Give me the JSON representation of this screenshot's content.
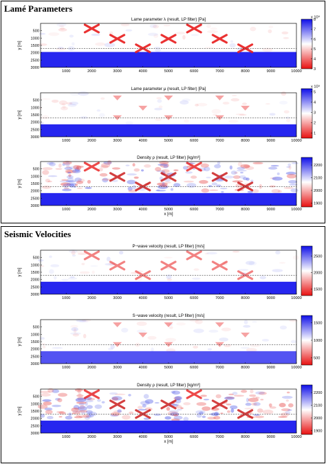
{
  "sections": [
    {
      "title": "Lamé Parameters"
    },
    {
      "title": "Seismic Velocities"
    }
  ],
  "colors": {
    "accent_blue": "#1a1aee",
    "accent_red": "#e81c1c",
    "frame": "#000000"
  },
  "chart_data": [
    {
      "type": "heatmap",
      "title": "Lame parameter λ (result, LP filter) [Pa]",
      "xlabel": "",
      "ylabel": "y [m]",
      "xlim": [
        0,
        10000
      ],
      "ylim": [
        3000,
        0
      ],
      "xticks": [
        "1000",
        "2000",
        "3000",
        "4000",
        "5000",
        "6000",
        "7000",
        "8000",
        "9000",
        "10000"
      ],
      "yticks": [
        "500",
        "1000",
        "1500",
        "2000",
        "2500",
        "3000"
      ],
      "colorbar": {
        "ticks": [
          "8",
          "7",
          "6",
          "5",
          "4",
          "3"
        ],
        "exponent": "x 10⁹",
        "min": 3,
        "max": 8
      },
      "interface_depth": 1700,
      "bottom_layer_top": 1950,
      "anomalies": [
        {
          "x": 2000,
          "y": 350,
          "shape": "x"
        },
        {
          "x": 3000,
          "y": 1050,
          "shape": "x"
        },
        {
          "x": 4000,
          "y": 1700,
          "shape": "x"
        },
        {
          "x": 5000,
          "y": 1050,
          "shape": "x"
        },
        {
          "x": 6000,
          "y": 350,
          "shape": "x"
        },
        {
          "x": 7000,
          "y": 1050,
          "shape": "x"
        },
        {
          "x": 8000,
          "y": 1700,
          "shape": "x"
        }
      ]
    },
    {
      "type": "heatmap",
      "title": "Lame parameter μ (result, LP filter) [Pa]",
      "xlabel": "",
      "ylabel": "y [m]",
      "xlim": [
        0,
        10000
      ],
      "ylim": [
        3000,
        0
      ],
      "xticks": [
        "1000",
        "2000",
        "3000",
        "4000",
        "5000",
        "6000",
        "7000",
        "8000",
        "9000",
        "10000"
      ],
      "yticks": [
        "500",
        "1000",
        "1500",
        "2000",
        "2500",
        "3000"
      ],
      "colorbar": {
        "ticks": [
          "5",
          "4",
          "3",
          "2",
          "1"
        ],
        "exponent": "x 10⁹",
        "min": 0.5,
        "max": 5.3
      },
      "interface_depth": 1700,
      "bottom_layer_top": 2150,
      "anomalies": [
        {
          "x": 3000,
          "y": 350,
          "shape": "tri"
        },
        {
          "x": 4000,
          "y": 1050,
          "shape": "tri"
        },
        {
          "x": 5000,
          "y": 350,
          "shape": "tri"
        },
        {
          "x": 7000,
          "y": 350,
          "shape": "tri"
        },
        {
          "x": 8000,
          "y": 1050,
          "shape": "tri"
        },
        {
          "x": 3000,
          "y": 1700,
          "shape": "tri"
        },
        {
          "x": 5000,
          "y": 1700,
          "shape": "tri"
        },
        {
          "x": 7000,
          "y": 1700,
          "shape": "tri"
        }
      ]
    },
    {
      "type": "heatmap",
      "title": "Density ρ (result, LP filter) [kg/m³]",
      "xlabel": "x [m]",
      "ylabel": "y [m]",
      "xlim": [
        0,
        10000
      ],
      "ylim": [
        3000,
        0
      ],
      "xticks": [
        "1000",
        "2000",
        "3000",
        "4000",
        "5000",
        "6000",
        "7000",
        "8000",
        "9000",
        "10000"
      ],
      "yticks": [
        "500",
        "1000",
        "1500",
        "2000",
        "2500",
        "3000"
      ],
      "colorbar": {
        "ticks": [
          "2200",
          "2100",
          "2000",
          "1900"
        ],
        "exponent": "",
        "min": 1870,
        "max": 2260
      },
      "interface_depth": 1700,
      "bottom_layer_top": 2150,
      "anomalies": [
        {
          "x": 2000,
          "y": 350,
          "shape": "x"
        },
        {
          "x": 3000,
          "y": 1050,
          "shape": "x"
        },
        {
          "x": 4000,
          "y": 1700,
          "shape": "x"
        },
        {
          "x": 5000,
          "y": 1050,
          "shape": "x"
        },
        {
          "x": 6000,
          "y": 350,
          "shape": "x"
        },
        {
          "x": 7000,
          "y": 1050,
          "shape": "x"
        },
        {
          "x": 8000,
          "y": 1700,
          "shape": "x"
        }
      ]
    },
    {
      "type": "heatmap",
      "title": "P−wave velocity (result, LP filter) [m/s]",
      "xlabel": "",
      "ylabel": "y [m]",
      "xlim": [
        0,
        10000
      ],
      "ylim": [
        3000,
        0
      ],
      "xticks": [
        "1000",
        "2000",
        "3000",
        "4000",
        "5000",
        "6000",
        "7000",
        "8000",
        "9000",
        "10000"
      ],
      "yticks": [
        "500",
        "1000",
        "1500",
        "2000",
        "2500",
        "3000"
      ],
      "colorbar": {
        "ticks": [
          "2500",
          "2000",
          "1500"
        ],
        "exponent": "",
        "min": 1300,
        "max": 2800
      },
      "interface_depth": 1700,
      "bottom_layer_top": 2150,
      "anomalies": [
        {
          "x": 2000,
          "y": 350,
          "shape": "x"
        },
        {
          "x": 3000,
          "y": 1050,
          "shape": "x"
        },
        {
          "x": 4000,
          "y": 1700,
          "shape": "x"
        },
        {
          "x": 5000,
          "y": 1050,
          "shape": "x"
        },
        {
          "x": 6000,
          "y": 350,
          "shape": "x"
        },
        {
          "x": 7000,
          "y": 1050,
          "shape": "x"
        },
        {
          "x": 8000,
          "y": 1700,
          "shape": "x"
        }
      ]
    },
    {
      "type": "heatmap",
      "title": "S−wave velocity (result, LP filter) [m/s]",
      "xlabel": "",
      "ylabel": "y [m]",
      "xlim": [
        0,
        10000
      ],
      "ylim": [
        3000,
        0
      ],
      "xticks": [
        "1000",
        "2000",
        "3000",
        "4000",
        "5000",
        "6000",
        "7000",
        "8000",
        "9000",
        "10000"
      ],
      "yticks": [
        "500",
        "1000",
        "1500",
        "2000",
        "2500",
        "3000"
      ],
      "colorbar": {
        "ticks": [
          "1500",
          "1000",
          "500"
        ],
        "exponent": "",
        "min": 300,
        "max": 1700
      },
      "interface_depth": 1700,
      "bottom_layer_top": 2150,
      "anomalies": [
        {
          "x": 3000,
          "y": 350,
          "shape": "tri"
        },
        {
          "x": 4000,
          "y": 1050,
          "shape": "tri"
        },
        {
          "x": 5000,
          "y": 350,
          "shape": "tri"
        },
        {
          "x": 7000,
          "y": 350,
          "shape": "tri"
        },
        {
          "x": 8000,
          "y": 1050,
          "shape": "tri"
        },
        {
          "x": 3000,
          "y": 1700,
          "shape": "tri"
        },
        {
          "x": 5000,
          "y": 1700,
          "shape": "tri"
        },
        {
          "x": 7000,
          "y": 1700,
          "shape": "tri"
        }
      ]
    },
    {
      "type": "heatmap",
      "title": "Density ρ (result, LP filter) [kg/m³]",
      "xlabel": "x [m]",
      "ylabel": "y [m]",
      "xlim": [
        0,
        10000
      ],
      "ylim": [
        3000,
        0
      ],
      "xticks": [
        "1000",
        "2000",
        "3000",
        "4000",
        "5000",
        "6000",
        "7000",
        "8000",
        "9000",
        "10000"
      ],
      "yticks": [
        "500",
        "1000",
        "1500",
        "2000",
        "2500",
        "3000"
      ],
      "colorbar": {
        "ticks": [
          "2200",
          "2100",
          "2000",
          "1900"
        ],
        "exponent": "",
        "min": 1870,
        "max": 2260
      },
      "interface_depth": 1700,
      "bottom_layer_top": 2150,
      "anomalies": [
        {
          "x": 2000,
          "y": 350,
          "shape": "x"
        },
        {
          "x": 3000,
          "y": 1050,
          "shape": "x"
        },
        {
          "x": 4000,
          "y": 1700,
          "shape": "x"
        },
        {
          "x": 5000,
          "y": 1050,
          "shape": "x"
        },
        {
          "x": 6000,
          "y": 350,
          "shape": "x"
        },
        {
          "x": 7000,
          "y": 1050,
          "shape": "x"
        },
        {
          "x": 8000,
          "y": 1700,
          "shape": "x"
        }
      ]
    }
  ]
}
